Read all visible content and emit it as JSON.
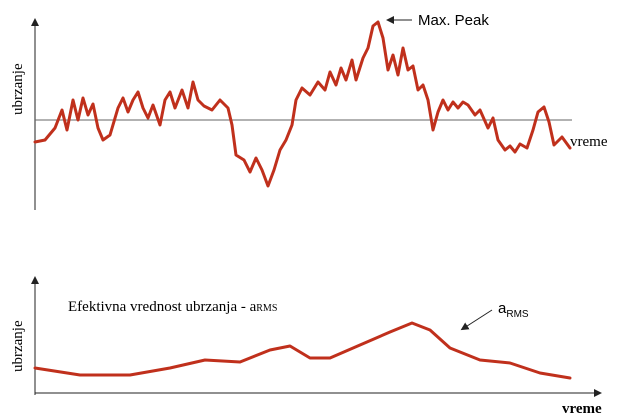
{
  "top": {
    "y_label": "ubrzanje",
    "x_label": "vreme",
    "annotation": "Max. Peak"
  },
  "bottom": {
    "y_label": "ubrzanje",
    "x_label": "vreme",
    "caption": "Efektivna vrednost ubrzanja - a",
    "caption_sub": "RMS",
    "annotation": "a",
    "annotation_sub": "RMS"
  }
}
